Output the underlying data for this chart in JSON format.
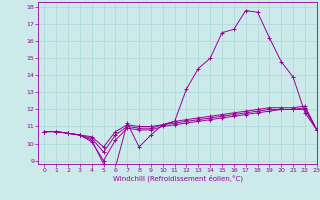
{
  "xlabel": "Windchill (Refroidissement éolien,°C)",
  "xlim": [
    -0.5,
    23
  ],
  "ylim": [
    8.8,
    18.3
  ],
  "yticks": [
    9,
    10,
    11,
    12,
    13,
    14,
    15,
    16,
    17,
    18
  ],
  "xticks": [
    0,
    1,
    2,
    3,
    4,
    5,
    6,
    7,
    8,
    9,
    10,
    11,
    12,
    13,
    14,
    15,
    16,
    17,
    18,
    19,
    20,
    21,
    22,
    23
  ],
  "background_color": "#cceaea",
  "line_color": "#990099",
  "grid_color": "#aad8d8",
  "lines": [
    {
      "x": [
        0,
        1,
        2,
        3,
        4,
        5,
        6,
        7,
        8,
        9,
        10,
        11,
        12,
        13,
        14,
        15,
        16,
        17,
        18,
        19,
        20,
        21,
        22,
        23
      ],
      "y": [
        10.7,
        10.7,
        10.6,
        10.5,
        10.2,
        8.8,
        8.6,
        11.2,
        9.8,
        10.5,
        11.1,
        11.3,
        13.2,
        14.4,
        15.0,
        16.5,
        16.7,
        17.8,
        17.7,
        16.2,
        14.8,
        13.9,
        11.8,
        10.8
      ]
    },
    {
      "x": [
        0,
        1,
        2,
        3,
        4,
        5,
        6,
        7,
        8,
        9,
        10,
        11,
        12,
        13,
        14,
        15,
        16,
        17,
        18,
        19,
        20,
        21,
        22,
        23
      ],
      "y": [
        10.7,
        10.7,
        10.6,
        10.5,
        10.1,
        9.0,
        10.2,
        10.9,
        10.8,
        10.8,
        11.0,
        11.1,
        11.2,
        11.3,
        11.4,
        11.5,
        11.6,
        11.7,
        11.8,
        11.9,
        12.0,
        12.0,
        12.0,
        10.8
      ]
    },
    {
      "x": [
        0,
        1,
        2,
        3,
        4,
        5,
        6,
        7,
        8,
        9,
        10,
        11,
        12,
        13,
        14,
        15,
        16,
        17,
        18,
        19,
        20,
        21,
        22,
        23
      ],
      "y": [
        10.7,
        10.7,
        10.6,
        10.5,
        10.3,
        9.5,
        10.5,
        11.0,
        10.9,
        10.9,
        11.1,
        11.2,
        11.3,
        11.4,
        11.5,
        11.6,
        11.7,
        11.8,
        11.9,
        12.0,
        12.0,
        12.0,
        12.1,
        10.8
      ]
    },
    {
      "x": [
        0,
        1,
        2,
        3,
        4,
        5,
        6,
        7,
        8,
        9,
        10,
        11,
        12,
        13,
        14,
        15,
        16,
        17,
        18,
        19,
        20,
        21,
        22,
        23
      ],
      "y": [
        10.7,
        10.7,
        10.6,
        10.5,
        10.4,
        9.8,
        10.7,
        11.1,
        11.0,
        11.0,
        11.1,
        11.3,
        11.4,
        11.5,
        11.6,
        11.7,
        11.8,
        11.9,
        12.0,
        12.1,
        12.1,
        12.1,
        12.2,
        10.8
      ]
    }
  ]
}
